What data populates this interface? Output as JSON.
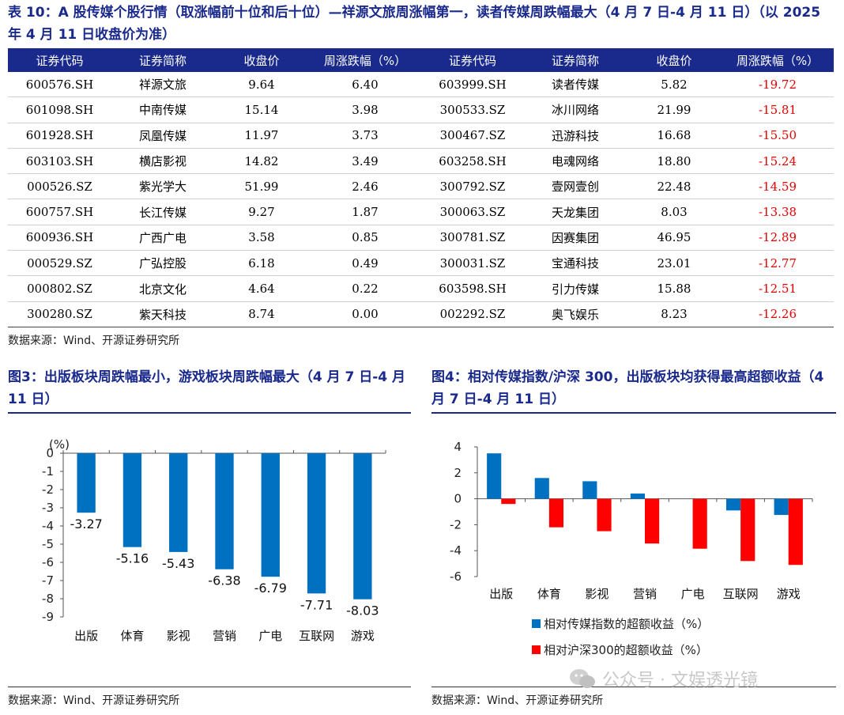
{
  "table": {
    "title": "表 10：A 股传媒个股行情（取涨幅前十位和后十位）—祥源文旅周涨幅第一，读者传媒周跌幅最大（4 月 7 日-4 月 11 日）（以 2025 年 4 月 11 日收盘价为准）",
    "headers": [
      "证券代码",
      "证券简称",
      "收盘价",
      "周涨跌幅（%）",
      "证券代码",
      "证券简称",
      "收盘价",
      "周涨跌幅（%）"
    ],
    "rows": [
      [
        "600576.SH",
        "祥源文旅",
        "9.64",
        "6.40",
        "603999.SH",
        "读者传媒",
        "5.82",
        "-19.72"
      ],
      [
        "601098.SH",
        "中南传媒",
        "15.14",
        "3.98",
        "300533.SZ",
        "冰川网络",
        "21.99",
        "-15.81"
      ],
      [
        "601928.SH",
        "凤凰传媒",
        "11.97",
        "3.73",
        "300467.SZ",
        "迅游科技",
        "16.68",
        "-15.50"
      ],
      [
        "603103.SH",
        "横店影视",
        "14.82",
        "3.49",
        "603258.SH",
        "电魂网络",
        "18.80",
        "-15.24"
      ],
      [
        "000526.SZ",
        "紫光学大",
        "51.99",
        "2.46",
        "300792.SZ",
        "壹网壹创",
        "22.48",
        "-14.59"
      ],
      [
        "600757.SH",
        "长江传媒",
        "9.27",
        "1.87",
        "300063.SZ",
        "天龙集团",
        "8.03",
        "-13.38"
      ],
      [
        "600936.SH",
        "广西广电",
        "3.58",
        "0.85",
        "300781.SZ",
        "因赛集团",
        "46.95",
        "-12.89"
      ],
      [
        "000529.SZ",
        "广弘控股",
        "6.18",
        "0.49",
        "300031.SZ",
        "宝通科技",
        "23.01",
        "-12.77"
      ],
      [
        "000802.SZ",
        "北京文化",
        "4.64",
        "0.22",
        "603598.SH",
        "引力传媒",
        "15.88",
        "-12.51"
      ],
      [
        "300280.SZ",
        "紫天科技",
        "8.74",
        "0.00",
        "002292.SZ",
        "奥飞娱乐",
        "8.23",
        "-12.26"
      ]
    ],
    "source": "数据来源：Wind、开源证券研究所"
  },
  "fig3": {
    "title": "图3：出版板块周跌幅最小，游戏板块周跌幅最大（4 月 7 日-4 月 11 日）",
    "source": "数据来源：Wind、开源证券研究所"
  },
  "fig4": {
    "title": "图4：相对传媒指数/沪深 300，出版板块均获得最高超额收益（4 月 7 日-4 月 11 日）",
    "source": "数据来源：Wind、开源证券研究所"
  },
  "watermark": "公众号 · 文娱透光镜",
  "colors": {
    "header": "#1a2a8c",
    "bar_blue": "#0070c0",
    "bar_red": "#ff0000",
    "negative_text": "#e60000"
  },
  "chart_data": [
    {
      "type": "bar",
      "categories": [
        "出版",
        "体育",
        "影视",
        "营销",
        "广电",
        "互联网",
        "游戏"
      ],
      "values": [
        -3.27,
        -5.16,
        -5.43,
        -6.38,
        -6.79,
        -7.71,
        -8.03
      ],
      "data_labels": [
        "-3.27",
        "-5.16",
        "-5.43",
        "-6.38",
        "-6.79",
        "-7.71",
        "-8.03"
      ],
      "unit_label": "(%)",
      "ylim": [
        -9,
        0
      ],
      "yticks": [
        "0",
        "-1",
        "-2",
        "-3",
        "-4",
        "-5",
        "-6",
        "-7",
        "-8",
        "-9"
      ],
      "grid": false,
      "color": "#0070c0"
    },
    {
      "type": "bar",
      "categories": [
        "出版",
        "体育",
        "影视",
        "营销",
        "广电",
        "互联网",
        "游戏"
      ],
      "series": [
        {
          "name": "相对传媒指数的超额收益（%）",
          "color": "#0070c0",
          "values": [
            3.5,
            1.6,
            1.35,
            0.4,
            0.0,
            -0.9,
            -1.25
          ]
        },
        {
          "name": "相对沪深300的超额收益（%）",
          "color": "#ff0000",
          "values": [
            -0.4,
            -2.2,
            -2.5,
            -3.45,
            -3.85,
            -4.8,
            -5.1
          ]
        }
      ],
      "ylim": [
        -6,
        4
      ],
      "yticks": [
        "4",
        "2",
        "0",
        "-2",
        "-4",
        "-6"
      ],
      "grid": false,
      "legend": "bottom"
    }
  ]
}
